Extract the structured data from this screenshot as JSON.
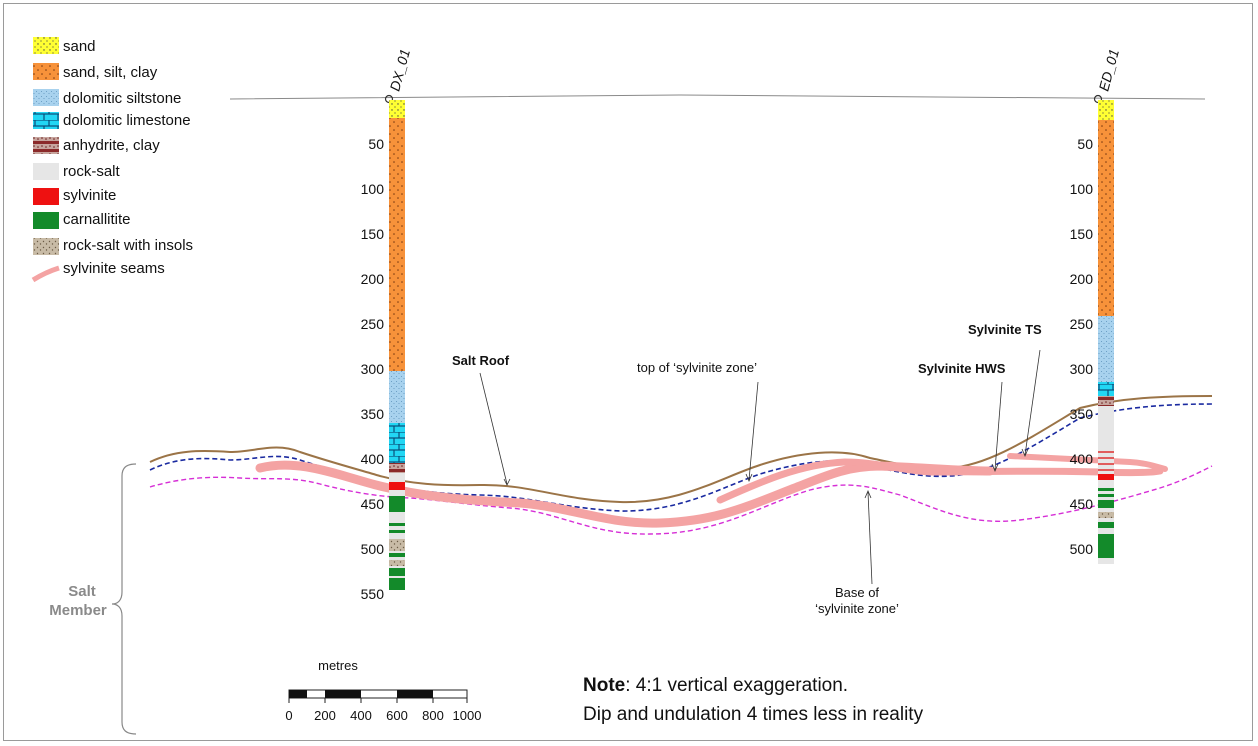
{
  "legend": [
    {
      "key": "sand",
      "label": "sand",
      "color": "#ffff33"
    },
    {
      "key": "sand-silt-clay",
      "label": "sand, silt, clay",
      "color": "#f7923a"
    },
    {
      "key": "dolomitic-siltstone",
      "label": "dolomitic siltstone",
      "color": "#a8d2ee"
    },
    {
      "key": "dolomitic-limestone",
      "label": "dolomitic limestone",
      "color": "#22d6f4"
    },
    {
      "key": "anhydrite-clay",
      "label": "anhydrite, clay",
      "color": "#8b2a2a"
    },
    {
      "key": "rock-salt",
      "label": "rock-salt",
      "color": "#e6e6e6"
    },
    {
      "key": "sylvinite",
      "label": "sylvinite",
      "color": "#ee1111"
    },
    {
      "key": "carnallitite",
      "label": "carnallitite",
      "color": "#138a2a"
    },
    {
      "key": "rock-salt-insols",
      "label": "rock-salt with insols",
      "color": "#c8bba6"
    },
    {
      "key": "sylvinite-seams",
      "label": "sylvinite seams",
      "color": "#f4a3a3"
    }
  ],
  "wells": [
    {
      "name": "DX_01",
      "depths": [
        "50",
        "100",
        "150",
        "200",
        "250",
        "300",
        "350",
        "400",
        "450",
        "500",
        "550"
      ]
    },
    {
      "name": "ED_01",
      "depths": [
        "50",
        "100",
        "150",
        "200",
        "250",
        "300",
        "350",
        "400",
        "450",
        "500"
      ]
    }
  ],
  "annotations": {
    "salt_roof": "Salt Roof",
    "top_zone": "top of ‘sylvinite zone’",
    "base_zone_1": "Base of",
    "base_zone_2": "‘sylvinite zone’",
    "sylvinite_ts": "Sylvinite TS",
    "sylvinite_hws": "Sylvinite HWS",
    "salt_member_1": "Salt",
    "salt_member_2": "Member"
  },
  "scale": {
    "unit": "metres",
    "ticks": [
      "0",
      "200",
      "400",
      "600",
      "800",
      "1000"
    ]
  },
  "note": {
    "bold": "Note",
    "rest": ": 4:1 vertical exaggeration.",
    "line2": "Dip and undulation 4 times less in reality"
  },
  "colors": {
    "salt_roof_line": "#9b7447",
    "top_zone_line": "#1a2aa0",
    "base_zone_line": "#d62fd6",
    "seam": "#f4a3a3"
  }
}
